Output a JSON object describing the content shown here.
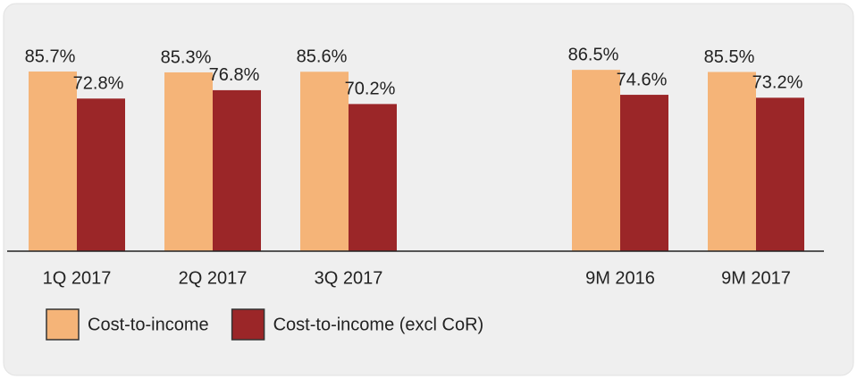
{
  "chart_data": {
    "type": "bar",
    "categories": [
      "1Q 2017",
      "2Q 2017",
      "3Q 2017",
      null,
      "9M 2016",
      "9M 2017"
    ],
    "series": [
      {
        "name": "Cost-to-income",
        "color": "#f5b478",
        "values": [
          85.7,
          85.3,
          85.6,
          null,
          86.5,
          85.5
        ],
        "value_labels": [
          "85.7%",
          "85.3%",
          "85.6%",
          null,
          "86.5%",
          "85.5%"
        ]
      },
      {
        "name": "Cost-to-income (excl CoR)",
        "color": "#9b2628",
        "values": [
          72.8,
          76.8,
          70.2,
          null,
          74.6,
          73.2
        ],
        "value_labels": [
          "72.8%",
          "76.8%",
          "70.2%",
          null,
          "74.6%",
          "73.2%"
        ]
      }
    ],
    "ylim": [
      0,
      100
    ],
    "legend": "bottom"
  }
}
